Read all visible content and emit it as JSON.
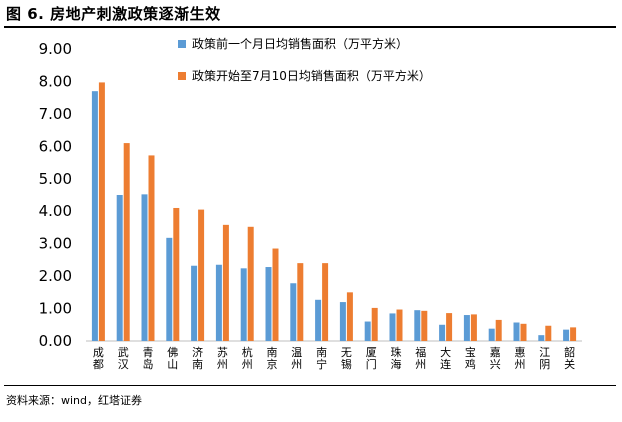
{
  "figure": {
    "title": "图 6. 房地产刺激政策逐渐生效",
    "source": "资料来源：wind，红塔证券"
  },
  "chart_data": {
    "type": "bar",
    "title": "",
    "xlabel": "",
    "ylabel": "",
    "ylim": [
      0,
      9
    ],
    "yticks": [
      "0.00",
      "1.00",
      "2.00",
      "3.00",
      "4.00",
      "5.00",
      "6.00",
      "7.00",
      "8.00",
      "9.00"
    ],
    "grid": false,
    "legend_position": "top-center",
    "categories": [
      "成都",
      "武汉",
      "青岛",
      "佛山",
      "济南",
      "苏州",
      "杭州",
      "南京",
      "温州",
      "南宁",
      "无锡",
      "厦门",
      "珠海",
      "福州",
      "大连",
      "宝鸡",
      "嘉兴",
      "惠州",
      "江阴",
      "韶关"
    ],
    "series": [
      {
        "name": "政策前一个月日均销售面积（万平方米）",
        "color": "#5b9bd5",
        "values": [
          7.7,
          4.5,
          4.52,
          3.18,
          2.32,
          2.35,
          2.24,
          2.28,
          1.78,
          1.27,
          1.2,
          0.6,
          0.85,
          0.95,
          0.5,
          0.8,
          0.38,
          0.57,
          0.18,
          0.35
        ]
      },
      {
        "name": "政策开始至7月10日均销售面积（万平方米）",
        "color": "#ed7d31",
        "values": [
          7.97,
          6.1,
          5.72,
          4.1,
          4.05,
          3.58,
          3.52,
          2.85,
          2.4,
          2.4,
          1.5,
          1.02,
          0.97,
          0.93,
          0.86,
          0.82,
          0.65,
          0.53,
          0.47,
          0.42
        ]
      }
    ]
  }
}
